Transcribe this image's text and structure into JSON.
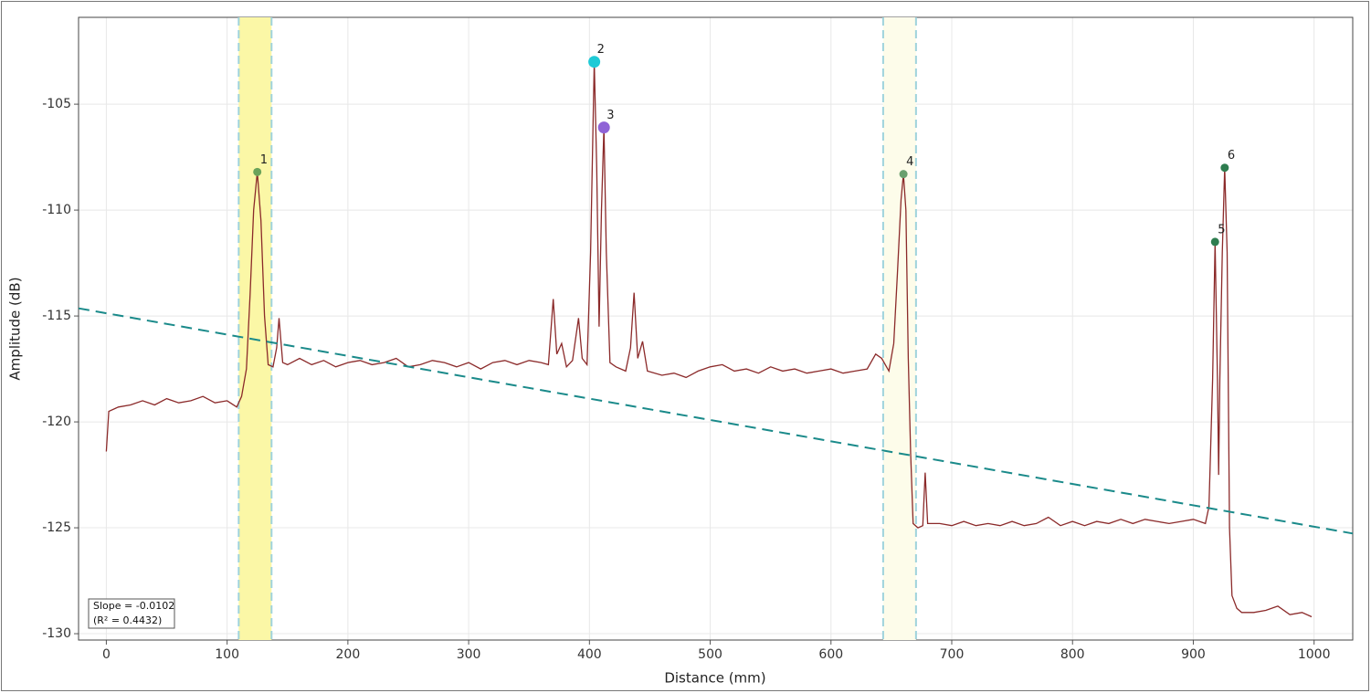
{
  "chart_data": {
    "type": "line",
    "x_label": "Distance (mm)",
    "y_label": "Amplitude (dB)",
    "xlim": [
      -23,
      1032
    ],
    "ylim": [
      -130.3,
      -100.9
    ],
    "xticks": [
      0,
      100,
      200,
      300,
      400,
      500,
      600,
      700,
      800,
      900,
      1000
    ],
    "yticks": [
      -130,
      -125,
      -120,
      -115,
      -110,
      -105
    ],
    "grid": true,
    "series": [
      {
        "color": "#8b2a2a",
        "x": [
          0,
          2,
          10,
          20,
          30,
          40,
          50,
          60,
          70,
          80,
          90,
          100,
          108,
          112,
          116,
          119,
          122,
          125,
          128,
          131,
          134,
          138,
          141,
          143,
          146,
          150,
          160,
          170,
          180,
          190,
          200,
          210,
          220,
          230,
          240,
          250,
          260,
          270,
          280,
          290,
          300,
          310,
          320,
          330,
          340,
          350,
          360,
          366,
          370,
          373,
          377,
          381,
          386,
          391,
          394,
          398,
          401,
          404,
          406,
          408,
          410,
          412,
          414,
          417,
          422,
          430,
          434,
          437,
          440,
          444,
          448,
          460,
          470,
          480,
          490,
          500,
          510,
          520,
          530,
          540,
          550,
          560,
          570,
          580,
          590,
          600,
          610,
          620,
          630,
          637,
          642,
          648,
          652,
          655,
          658,
          660,
          662,
          664,
          666,
          668,
          672,
          676,
          678,
          680,
          690,
          700,
          710,
          720,
          730,
          740,
          750,
          760,
          770,
          780,
          790,
          800,
          810,
          820,
          830,
          840,
          850,
          860,
          870,
          880,
          890,
          900,
          910,
          913,
          916,
          918,
          920,
          921,
          922,
          924,
          926,
          928,
          930,
          932,
          936,
          940,
          950,
          960,
          970,
          980,
          990,
          998
        ],
        "values": [
          -121.4,
          -119.5,
          -119.3,
          -119.2,
          -119.0,
          -119.2,
          -118.9,
          -119.1,
          -119.0,
          -118.8,
          -119.1,
          -119.0,
          -119.3,
          -118.8,
          -117.5,
          -114,
          -110,
          -108.2,
          -110.5,
          -115,
          -117.3,
          -117.4,
          -116.5,
          -115.1,
          -117.2,
          -117.3,
          -117.0,
          -117.3,
          -117.1,
          -117.4,
          -117.2,
          -117.1,
          -117.3,
          -117.2,
          -117.0,
          -117.4,
          -117.3,
          -117.1,
          -117.2,
          -117.4,
          -117.2,
          -117.5,
          -117.2,
          -117.1,
          -117.3,
          -117.1,
          -117.2,
          -117.3,
          -114.2,
          -116.8,
          -116.3,
          -117.4,
          -117.1,
          -115.1,
          -117.0,
          -117.3,
          -112,
          -103.0,
          -108,
          -115.5,
          -110,
          -106.1,
          -112,
          -117.2,
          -117.4,
          -117.6,
          -116.5,
          -113.9,
          -117.0,
          -116.2,
          -117.6,
          -117.8,
          -117.7,
          -117.9,
          -117.6,
          -117.4,
          -117.3,
          -117.6,
          -117.5,
          -117.7,
          -117.4,
          -117.6,
          -117.5,
          -117.7,
          -117.6,
          -117.5,
          -117.7,
          -117.6,
          -117.5,
          -116.8,
          -117.0,
          -117.6,
          -116.3,
          -113,
          -109.5,
          -108.3,
          -110,
          -117,
          -121.5,
          -124.8,
          -125.0,
          -124.9,
          -122.4,
          -124.8,
          -124.8,
          -124.9,
          -124.7,
          -124.9,
          -124.8,
          -124.9,
          -124.7,
          -124.9,
          -124.8,
          -124.5,
          -124.9,
          -124.7,
          -124.9,
          -124.7,
          -124.8,
          -124.6,
          -124.8,
          -124.6,
          -124.7,
          -124.8,
          -124.7,
          -124.6,
          -124.8,
          -124.0,
          -118,
          -111.5,
          -118,
          -122.5,
          -118,
          -112,
          -108.0,
          -112,
          -125,
          -128.2,
          -128.8,
          -129.0,
          -129.0,
          -128.9,
          -128.7,
          -129.1,
          -129.0,
          -129.2
        ]
      }
    ],
    "trend_line": {
      "color": "#1a8a8a",
      "x": [
        -23,
        1032
      ],
      "values": [
        -114.64,
        -125.27
      ]
    },
    "bands": [
      {
        "x0": 109.6,
        "x1": 136.8,
        "color": "#fbf7a6",
        "edge_color": "#9fd3dc"
      },
      {
        "x0": 643.2,
        "x1": 670.4,
        "color": "#fdfcea",
        "edge_color": "#9fd3dc"
      }
    ],
    "markers": [
      {
        "label": "1",
        "x": 125,
        "y": -108.2,
        "color": "#6aa35a"
      },
      {
        "label": "2",
        "x": 404,
        "y": -103.0,
        "color": "#1fcad6",
        "active": true
      },
      {
        "label": "3",
        "x": 412,
        "y": -106.1,
        "color": "#8f63d6",
        "active": true
      },
      {
        "label": "4",
        "x": 660,
        "y": -108.3,
        "color": "#6aa06e"
      },
      {
        "label": "5",
        "x": 918,
        "y": -111.5,
        "color": "#2e7d4f"
      },
      {
        "label": "6",
        "x": 926,
        "y": -108.0,
        "color": "#2e7d4f"
      }
    ],
    "annotation": [
      "Slope = -0.0102",
      "(R² = 0.4432)"
    ]
  }
}
